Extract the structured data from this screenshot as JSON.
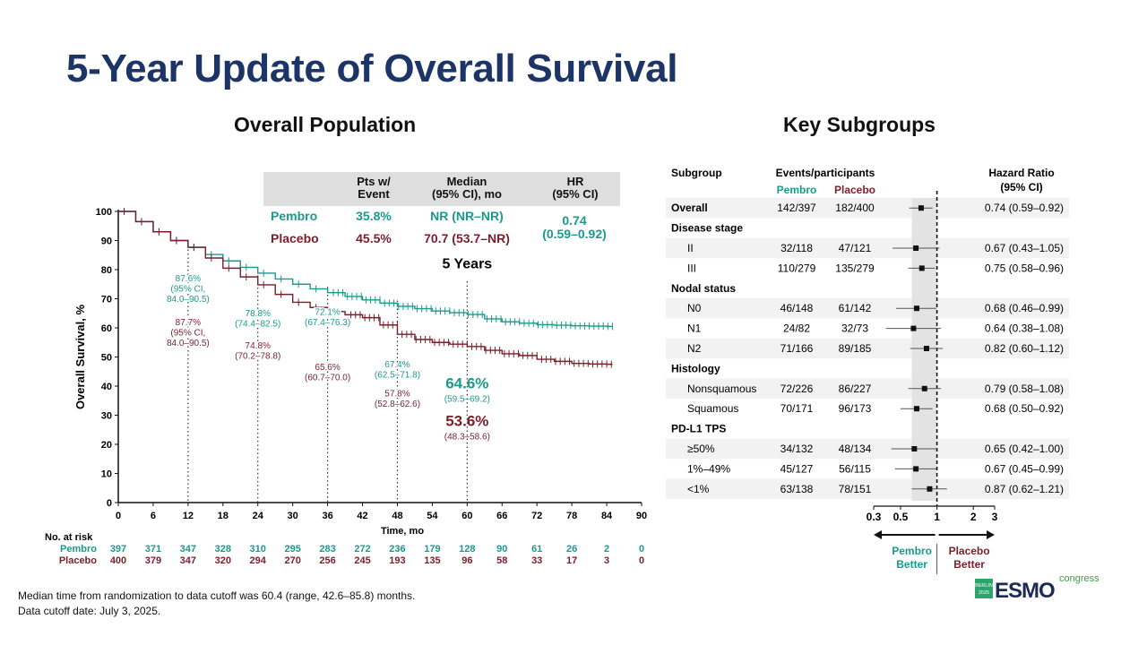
{
  "slide": {
    "title": "5-Year Update of Overall Survival",
    "left_section_title": "Overall Population",
    "right_section_title": "Key Subgroups",
    "footnotes": [
      "Median time from randomization to data cutoff was 60.4 (range, 42.6–85.8) months.",
      "Data cutoff date: July 3, 2025."
    ],
    "logo": {
      "city": "BERLIN",
      "year": "2025",
      "brand": "ESMO",
      "suffix": "congress"
    }
  },
  "colors": {
    "pembro": "#1a9a8c",
    "placebo": "#7a1f2b",
    "title": "#1c3566",
    "table_header_bg": "#dedede",
    "forest_band": "#e3e3e3"
  },
  "summary_table": {
    "headers": [
      "Pts w/\nEvent",
      "Median\n(95% CI), mo",
      "HR\n(95% CI)"
    ],
    "rows": [
      {
        "arm": "Pembro",
        "pct_event": "35.8%",
        "median": "NR (NR–NR)"
      },
      {
        "arm": "Placebo",
        "pct_event": "45.5%",
        "median": "70.7 (53.7–NR)"
      }
    ],
    "hr_value": "0.74",
    "hr_ci": "(0.59–0.92)"
  },
  "chart_data": [
    {
      "type": "line",
      "title": "Overall Population",
      "xlabel": "Time, mo",
      "ylabel": "Overall Survival, %",
      "xlim": [
        0,
        90
      ],
      "ylim": [
        0,
        100
      ],
      "xticks": [
        0,
        6,
        12,
        18,
        24,
        30,
        36,
        42,
        48,
        54,
        60,
        66,
        72,
        78,
        84,
        90
      ],
      "yticks": [
        0,
        10,
        20,
        30,
        40,
        50,
        60,
        70,
        80,
        90,
        100
      ],
      "series": [
        {
          "name": "Pembro",
          "x": [
            0,
            3,
            6,
            9,
            12,
            15,
            18,
            21,
            24,
            27,
            30,
            33,
            36,
            39,
            42,
            45,
            48,
            51,
            54,
            57,
            60,
            63,
            66,
            69,
            72,
            75,
            78,
            81,
            84,
            85
          ],
          "y": [
            100,
            96.5,
            93,
            90,
            87.6,
            85.2,
            83,
            80.8,
            78.8,
            76.8,
            75,
            73.4,
            72.1,
            70.8,
            69.6,
            68.5,
            67.4,
            66.6,
            65.8,
            65.2,
            64.6,
            63.1,
            62.1,
            61.6,
            61.1,
            60.9,
            60.7,
            60.6,
            60.5,
            60.5
          ],
          "censor_from": 36
        },
        {
          "name": "Placebo",
          "x": [
            0,
            3,
            6,
            9,
            12,
            15,
            18,
            21,
            24,
            27,
            30,
            33,
            36,
            39,
            42,
            45,
            48,
            51,
            54,
            57,
            60,
            63,
            66,
            69,
            72,
            75,
            78,
            81,
            84,
            85
          ],
          "y": [
            100,
            96.5,
            93,
            90,
            87.7,
            84,
            80.5,
            77.5,
            74.8,
            71.5,
            68.8,
            67,
            65.6,
            64.5,
            63.5,
            61,
            57.8,
            56,
            55,
            54.4,
            53.6,
            52.3,
            51.1,
            50.5,
            49.2,
            48.5,
            47.8,
            47.6,
            47.5,
            47.5
          ],
          "censor_from": 40
        }
      ],
      "landmarks": [
        {
          "month": 12,
          "pembro": "87.6%\n(95% CI,\n84.0–90.5)",
          "placebo": "87.7%\n(95% CI,\n84.0–90.5)",
          "pembro_y": 76,
          "placebo_y": 61
        },
        {
          "month": 24,
          "pembro": "78.8%\n(74.4–82.5)",
          "placebo": "74.8%\n(70.2–78.8)",
          "pembro_y": 64,
          "placebo_y": 53
        },
        {
          "month": 36,
          "pembro": "72.1%\n(67.4–76.3)",
          "placebo": "65.6%\n(60.7–70.0)",
          "pembro_y": 64.5,
          "placebo_y": 45.5
        },
        {
          "month": 48,
          "pembro": "67.4%\n(62.5–71.8)",
          "placebo": "57.8%\n(52.8–62.6)",
          "pembro_y": 46.5,
          "placebo_y": 36.5
        },
        {
          "month": 60,
          "pembro": "64.6%\n(59.5–69.2)",
          "placebo": "53.6%\n(48.3–58.6)",
          "pembro_y": 40.5,
          "placebo_y": 27.5,
          "emphasis": true
        }
      ],
      "annotation": "5 Years",
      "at_risk": {
        "label": "No. at risk",
        "pembro": [
          "397",
          "371",
          "347",
          "328",
          "310",
          "295",
          "283",
          "272",
          "236",
          "179",
          "128",
          "90",
          "61",
          "26",
          "2",
          "0"
        ],
        "placebo": [
          "400",
          "379",
          "347",
          "320",
          "294",
          "270",
          "256",
          "245",
          "193",
          "135",
          "96",
          "58",
          "33",
          "17",
          "3",
          "0"
        ]
      }
    },
    {
      "type": "forest",
      "title": "Key Subgroups",
      "columns": {
        "subgroup": "Subgroup",
        "events": "Events/participants",
        "pembro": "Pembro",
        "placebo": "Placebo",
        "hr": "Hazard Ratio\n(95% CI)"
      },
      "xscale": "log",
      "xticks": [
        0.3,
        0.5,
        1,
        2,
        3
      ],
      "xtick_labels": [
        "0.3",
        "0.5",
        "1",
        "2",
        "3"
      ],
      "reference": 1,
      "favors_left": "Pembro\nBetter",
      "favors_right": "Placebo\nBetter",
      "rows": [
        {
          "label": "Overall",
          "header": false,
          "bold": true,
          "indent": false,
          "pembro": "142/397",
          "placebo": "182/400",
          "hr": 0.74,
          "lo": 0.59,
          "hi": 0.92,
          "text": "0.74 (0.59–0.92)",
          "shade": true
        },
        {
          "label": "Disease stage",
          "header": true
        },
        {
          "label": "II",
          "header": false,
          "indent": true,
          "pembro": "32/118",
          "placebo": "47/121",
          "hr": 0.67,
          "lo": 0.43,
          "hi": 1.05,
          "text": "0.67 (0.43–1.05)",
          "shade": true
        },
        {
          "label": "III",
          "header": false,
          "indent": true,
          "pembro": "110/279",
          "placebo": "135/279",
          "hr": 0.75,
          "lo": 0.58,
          "hi": 0.96,
          "text": "0.75 (0.58–0.96)",
          "shade": false
        },
        {
          "label": "Nodal status",
          "header": true
        },
        {
          "label": "N0",
          "header": false,
          "indent": true,
          "pembro": "46/148",
          "placebo": "61/142",
          "hr": 0.68,
          "lo": 0.46,
          "hi": 0.99,
          "text": "0.68 (0.46–0.99)",
          "shade": true
        },
        {
          "label": "N1",
          "header": false,
          "indent": true,
          "pembro": "24/82",
          "placebo": "32/73",
          "hr": 0.64,
          "lo": 0.38,
          "hi": 1.08,
          "text": "0.64 (0.38–1.08)",
          "shade": false
        },
        {
          "label": "N2",
          "header": false,
          "indent": true,
          "pembro": "71/166",
          "placebo": "89/185",
          "hr": 0.82,
          "lo": 0.6,
          "hi": 1.12,
          "text": "0.82 (0.60–1.12)",
          "shade": true
        },
        {
          "label": "Histology",
          "header": true
        },
        {
          "label": "Nonsquamous",
          "header": false,
          "indent": true,
          "pembro": "72/226",
          "placebo": "86/227",
          "hr": 0.79,
          "lo": 0.58,
          "hi": 1.08,
          "text": "0.79 (0.58–1.08)",
          "shade": true
        },
        {
          "label": "Squamous",
          "header": false,
          "indent": true,
          "pembro": "70/171",
          "placebo": "96/173",
          "hr": 0.68,
          "lo": 0.5,
          "hi": 0.92,
          "text": "0.68 (0.50–0.92)",
          "shade": false
        },
        {
          "label": "PD-L1 TPS",
          "header": true
        },
        {
          "label": "≥50%",
          "header": false,
          "indent": true,
          "pembro": "34/132",
          "placebo": "48/134",
          "hr": 0.65,
          "lo": 0.42,
          "hi": 1.0,
          "text": "0.65 (0.42–1.00)",
          "shade": true
        },
        {
          "label": "1%–49%",
          "header": false,
          "indent": true,
          "pembro": "45/127",
          "placebo": "56/115",
          "hr": 0.67,
          "lo": 0.45,
          "hi": 0.99,
          "text": "0.67 (0.45–0.99)",
          "shade": false
        },
        {
          "label": "<1%",
          "header": false,
          "indent": true,
          "pembro": "63/138",
          "placebo": "78/151",
          "hr": 0.87,
          "lo": 0.62,
          "hi": 1.21,
          "text": "0.87 (0.62–1.21)",
          "shade": true
        }
      ]
    }
  ]
}
